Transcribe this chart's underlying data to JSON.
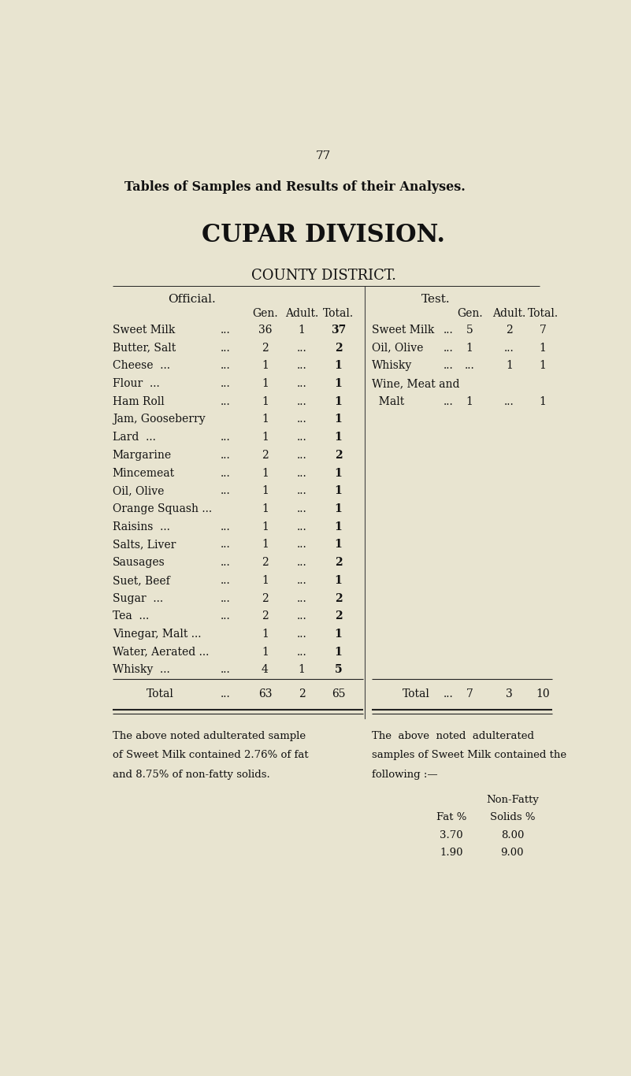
{
  "bg_color": "#e8e4d0",
  "page_number": "77",
  "main_title": "Tables of Samples and Results of their Analyses.",
  "division_title": "CUPAR DIVISION.",
  "district_subtitle": "COUNTY DISTRICT.",
  "left_section_title": "Official.",
  "right_section_title": "Test.",
  "left_rows": [
    [
      "Sweet Milk",
      "...",
      "36",
      "1",
      "37"
    ],
    [
      "Butter, Salt",
      "...",
      "2",
      "...",
      "2"
    ],
    [
      "Cheese  ...",
      "...",
      "1",
      "...",
      "1"
    ],
    [
      "Flour  ...",
      "...",
      "1",
      "...",
      "1"
    ],
    [
      "Ham Roll",
      "...",
      "1",
      "...",
      "1"
    ],
    [
      "Jam, Gooseberry",
      "",
      "1",
      "...",
      "1"
    ],
    [
      "Lard  ...",
      "...",
      "1",
      "...",
      "1"
    ],
    [
      "Margarine",
      "...",
      "2",
      "...",
      "2"
    ],
    [
      "Mincemeat",
      "...",
      "1",
      "...",
      "1"
    ],
    [
      "Oil, Olive",
      "...",
      "1",
      "...",
      "1"
    ],
    [
      "Orange Squash ...",
      "",
      "1",
      "...",
      "1"
    ],
    [
      "Raisins  ...",
      "...",
      "1",
      "...",
      "1"
    ],
    [
      "Salts, Liver",
      "...",
      "1",
      "...",
      "1"
    ],
    [
      "Sausages",
      "...",
      "2",
      "...",
      "2"
    ],
    [
      "Suet, Beef",
      "...",
      "1",
      "...",
      "1"
    ],
    [
      "Sugar  ...",
      "...",
      "2",
      "...",
      "2"
    ],
    [
      "Tea  ...",
      "...",
      "2",
      "...",
      "2"
    ],
    [
      "Vinegar, Malt ...",
      "",
      "1",
      "...",
      "1"
    ],
    [
      "Water, Aerated ...",
      "",
      "1",
      "...",
      "1"
    ],
    [
      "Whisky  ...",
      "...",
      "4",
      "1",
      "5"
    ]
  ],
  "left_total": [
    "Total",
    "...",
    "63",
    "2",
    "65"
  ],
  "right_rows": [
    [
      "Sweet Milk",
      "...",
      "5",
      "2",
      "7"
    ],
    [
      "Oil, Olive",
      "...",
      "1",
      "...",
      "1"
    ],
    [
      "Whisky",
      "...",
      "...",
      "1",
      "1"
    ],
    [
      "Wine, Meat and",
      "",
      "",
      "",
      ""
    ],
    [
      "  Malt",
      "...",
      "1",
      "...",
      "1"
    ]
  ],
  "right_total": [
    "Total",
    "...",
    "7",
    "3",
    "10"
  ],
  "left_note": [
    "The above noted adulterated sample",
    "of Sweet Milk contained 2.76% of fat",
    "and 8.75% of non-fatty solids."
  ],
  "right_note": [
    "The  above  noted  adulterated",
    "samples of Sweet Milk contained the",
    "following :—"
  ],
  "fat_header": "Fat %",
  "nonfat_header1": "Non-Fatty",
  "nonfat_header2": "Solids %",
  "note_data": [
    [
      "3.70",
      "8.00"
    ],
    [
      "1.90",
      "9.00"
    ]
  ]
}
